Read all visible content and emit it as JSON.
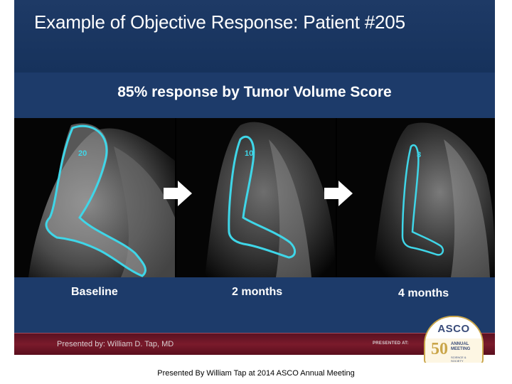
{
  "slide": {
    "title": "Example of Objective Response:  Patient #205",
    "subtitle": "85% response by Tumor Volume Score",
    "panels": [
      {
        "label": "Baseline",
        "score": "20"
      },
      {
        "label": "2 months",
        "score": "10"
      },
      {
        "label": "4 months",
        "score": "3"
      }
    ],
    "footer": {
      "presenter": "Presented by: William D. Tap, MD",
      "presented_at": "PRESENTED AT:"
    },
    "badge": {
      "org": "ASCO",
      "fifty": "50",
      "annual_line1": "ANNUAL",
      "annual_line2": "MEETING",
      "science_line1": "SCIENCE &",
      "science_line2": "SOCIETY"
    }
  },
  "caption": "Presented By William Tap at 2014 ASCO Annual Meeting",
  "colors": {
    "title_band": "#1e3a66",
    "main_band": "#1d3b6a",
    "tumor_outline": "#3fd6e8",
    "footer_bar": "#6b1626",
    "badge_gold": "#caa64a"
  }
}
